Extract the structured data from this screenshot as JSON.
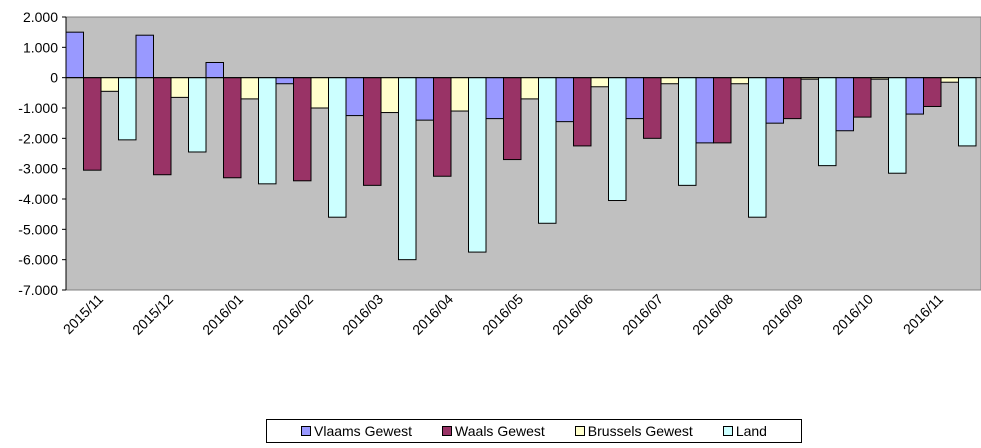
{
  "chart_data": {
    "type": "bar",
    "categories": [
      "2015/11",
      "2015/12",
      "2016/01",
      "2016/02",
      "2016/03",
      "2016/04",
      "2016/05",
      "2016/06",
      "2016/07",
      "2016/08",
      "2016/09",
      "2016/10",
      "2016/11"
    ],
    "series": [
      {
        "name": "Vlaams Gewest",
        "color": "#9999ff",
        "values": [
          1500,
          1400,
          500,
          -200,
          -1250,
          -1400,
          -1350,
          -1450,
          -1350,
          -2150,
          -1500,
          -1750,
          -1200
        ]
      },
      {
        "name": "Waals Gewest",
        "color": "#993366",
        "values": [
          -3050,
          -3200,
          -3300,
          -3400,
          -3550,
          -3250,
          -2700,
          -2250,
          -2000,
          -2150,
          -1350,
          -1300,
          -950
        ]
      },
      {
        "name": "Brussels Gewest",
        "color": "#ffffcc",
        "values": [
          -450,
          -650,
          -700,
          -1000,
          -1150,
          -1100,
          -700,
          -300,
          -200,
          -200,
          -50,
          -50,
          -150
        ]
      },
      {
        "name": "Land",
        "color": "#ccffff",
        "values": [
          -2050,
          -2450,
          -3500,
          -4600,
          -6000,
          -5750,
          -4800,
          -4050,
          -3550,
          -4600,
          -2900,
          -3150,
          -2250
        ]
      }
    ],
    "y_ticks": [
      "2.000",
      "1.000",
      "0",
      "-1.000",
      "-2.000",
      "-3.000",
      "-4.000",
      "-5.000",
      "-6.000",
      "-7.000"
    ],
    "ylim": [
      -7000,
      2000
    ],
    "grid": false,
    "plot_background": "#c0c0c0",
    "legend_position": "bottom",
    "title": "",
    "xlabel": "",
    "ylabel": ""
  }
}
